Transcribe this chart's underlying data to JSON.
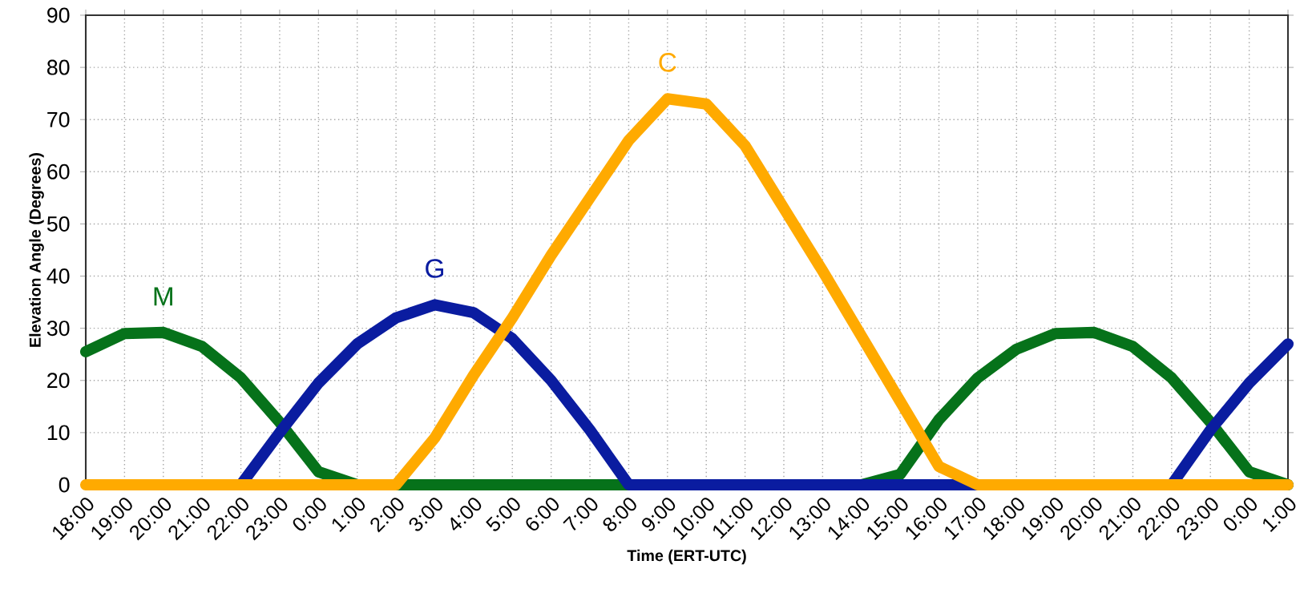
{
  "chart_data": {
    "type": "line",
    "xlabel": "Time (ERT-UTC)",
    "ylabel": "Elevation Angle (Degrees)",
    "categories": [
      "18:00",
      "19:00",
      "20:00",
      "21:00",
      "22:00",
      "23:00",
      "0:00",
      "1:00",
      "2:00",
      "3:00",
      "4:00",
      "5:00",
      "6:00",
      "7:00",
      "8:00",
      "9:00",
      "10:00",
      "11:00",
      "12:00",
      "13:00",
      "14:00",
      "15:00",
      "16:00",
      "17:00",
      "18:00",
      "19:00",
      "20:00",
      "21:00",
      "22:00",
      "23:00",
      "0:00",
      "1:00"
    ],
    "ylim": [
      0,
      90
    ],
    "yticks": [
      0,
      10,
      20,
      30,
      40,
      50,
      60,
      70,
      80,
      90
    ],
    "grid": true,
    "legend": false,
    "marker": "none",
    "line_style": "solid",
    "series": [
      {
        "name": "M",
        "color": "#06721a",
        "values": [
          25.5,
          29,
          29.2,
          26.5,
          20.5,
          12,
          2.5,
          0,
          0,
          0,
          0,
          0,
          0,
          0,
          0,
          0,
          0,
          0,
          0,
          0,
          0,
          2,
          12.5,
          20.5,
          26,
          29,
          29.2,
          26.5,
          20.5,
          12,
          2.5,
          0
        ]
      },
      {
        "name": "G",
        "color": "#0a1ca0",
        "values": [
          null,
          null,
          null,
          null,
          0,
          10,
          19.5,
          27,
          32,
          34.5,
          33,
          28,
          20,
          10.5,
          0,
          0,
          0,
          0,
          0,
          0,
          0,
          0,
          0,
          0,
          0,
          0,
          0,
          0,
          0,
          10.5,
          19.5,
          27
        ]
      },
      {
        "name": "C",
        "color": "#ffaa00",
        "values": [
          0,
          0,
          0,
          0,
          0,
          0,
          0,
          0,
          0,
          9,
          21,
          32,
          44,
          55,
          66,
          74,
          73,
          65,
          53,
          41,
          28.5,
          16,
          3.5,
          0,
          0,
          0,
          0,
          0,
          0,
          0,
          0,
          0
        ]
      }
    ]
  }
}
